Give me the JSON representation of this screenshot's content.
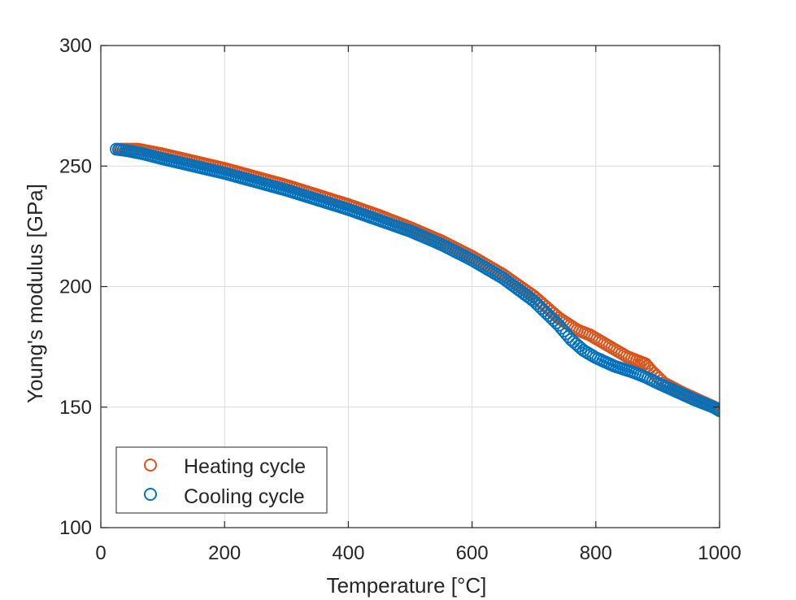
{
  "chart_data": {
    "type": "scatter",
    "xlabel": "Temperature [°C]",
    "ylabel": "Young's modulus [GPa]",
    "xlim": [
      0,
      1000
    ],
    "ylim": [
      100,
      300
    ],
    "xticks": [
      "0",
      "200",
      "400",
      "600",
      "800",
      "1000"
    ],
    "yticks": [
      "100",
      "150",
      "200",
      "250",
      "300"
    ],
    "grid": true,
    "legend_position": "bottom-left",
    "marker": "open-circle",
    "series": [
      {
        "name": "Heating cycle",
        "color": "#D95319",
        "curve": [
          [
            30,
            257
          ],
          [
            60,
            257
          ],
          [
            100,
            255
          ],
          [
            150,
            252
          ],
          [
            200,
            249
          ],
          [
            250,
            245.5
          ],
          [
            300,
            242
          ],
          [
            350,
            238
          ],
          [
            400,
            234
          ],
          [
            450,
            229.5
          ],
          [
            500,
            224.5
          ],
          [
            550,
            219
          ],
          [
            600,
            212.5
          ],
          [
            650,
            205
          ],
          [
            700,
            196
          ],
          [
            740,
            187
          ],
          [
            770,
            182
          ],
          [
            790,
            180
          ],
          [
            810,
            177
          ],
          [
            830,
            174
          ],
          [
            850,
            171
          ],
          [
            870,
            169
          ],
          [
            880,
            168
          ],
          [
            890,
            165
          ],
          [
            910,
            160
          ],
          [
            940,
            156
          ],
          [
            970,
            152.5
          ],
          [
            1000,
            149
          ]
        ]
      },
      {
        "name": "Cooling cycle",
        "color": "#0072BD",
        "curve": [
          [
            25,
            257
          ],
          [
            40,
            256.5
          ],
          [
            70,
            255
          ],
          [
            100,
            253
          ],
          [
            150,
            250
          ],
          [
            200,
            247
          ],
          [
            250,
            243.5
          ],
          [
            300,
            240
          ],
          [
            350,
            236
          ],
          [
            400,
            232
          ],
          [
            450,
            227.5
          ],
          [
            500,
            223
          ],
          [
            550,
            217.5
          ],
          [
            600,
            211
          ],
          [
            650,
            203.5
          ],
          [
            700,
            194
          ],
          [
            740,
            184
          ],
          [
            760,
            178
          ],
          [
            780,
            173.5
          ],
          [
            800,
            170.5
          ],
          [
            830,
            167
          ],
          [
            860,
            164.5
          ],
          [
            880,
            162.5
          ],
          [
            900,
            160
          ],
          [
            930,
            156.5
          ],
          [
            960,
            153
          ],
          [
            990,
            150
          ],
          [
            1000,
            148.5
          ]
        ]
      }
    ]
  }
}
